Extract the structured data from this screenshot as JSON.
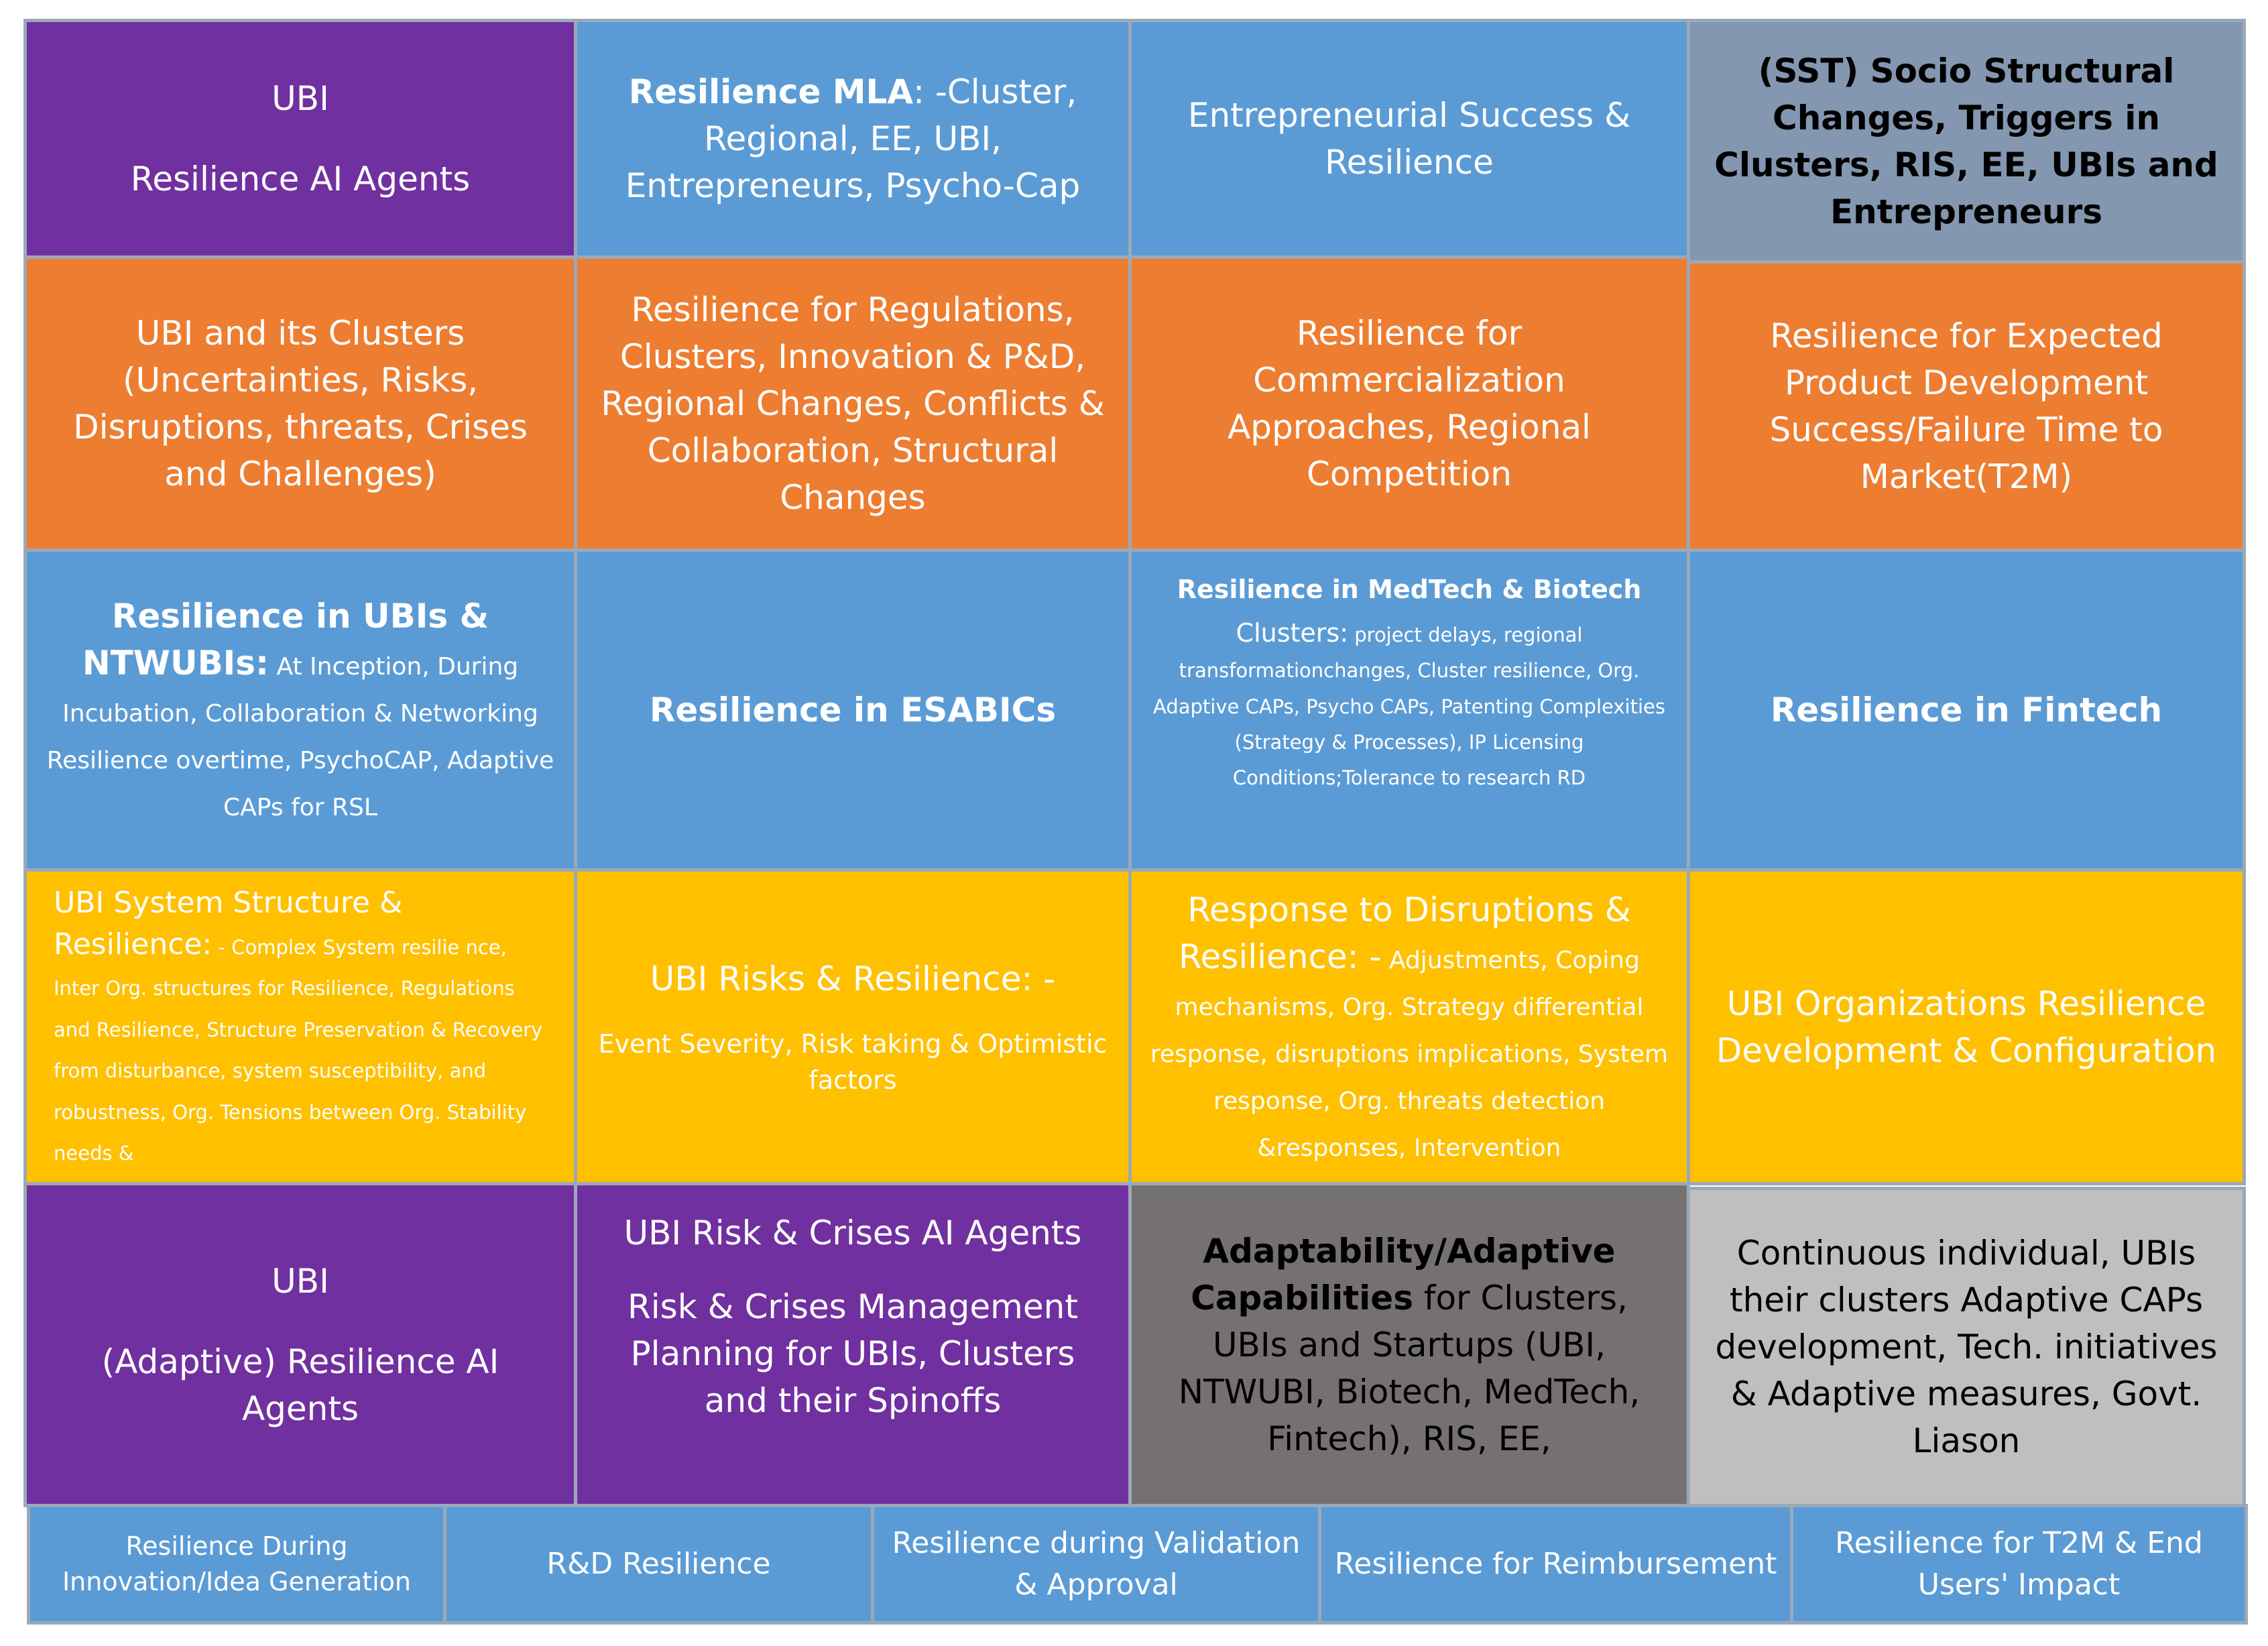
{
  "row1": {
    "c1": {
      "line1": "UBI",
      "line2": "Resilience AI  Agents"
    },
    "c2": {
      "bold": "Resilience MLA",
      "rest": ": -Cluster, Regional, EE, UBI, Entrepreneurs, Psycho-Cap"
    },
    "c3": {
      "text": "Entrepreneurial Success & Resilience"
    },
    "c4": {
      "text": "(SST) Socio Structural Changes, Triggers in Clusters, RIS, EE, UBIs and Entrepreneurs"
    }
  },
  "row2": {
    "c1": {
      "text": "UBI and its Clusters (Uncertainties, Risks, Disruptions, threats, Crises and Challenges)"
    },
    "c2": {
      "text": "Resilience for Regulations, Clusters, Innovation & P&D, Regional Changes, Conflicts & Collaboration, Structural Changes"
    },
    "c3": {
      "text": "Resilience for Commercialization Approaches, Regional Competition"
    },
    "c4": {
      "text": "Resilience for Expected Product Development Success/Failure Time to Market(T2M)"
    }
  },
  "row3": {
    "c1": {
      "bold": "Resilience in UBIs & NTWUBIs:",
      "rest": "  At Inception, During Incubation, Collaboration & Networking  Resilience overtime, PsychoCAP,  Adaptive CAPs for RSL"
    },
    "c2": {
      "text": "Resilience in ESABICs"
    },
    "c3": {
      "bold": "Resilience in MedTech & Biotech",
      "bold2": "Clusters:",
      "rest": "  project delays, regional transformationchanges, Cluster resilience, Org. Adaptive CAPs, Psycho CAPs, Patenting Complexities (Strategy & Processes), IP Licensing Conditions;Tolerance to research RD"
    },
    "c4": {
      "text": "Resilience in Fintech"
    }
  },
  "row4": {
    "c1": {
      "lead": "UBI System Structure & Resilience:",
      "rest": " - Complex System resilie nce, Inter Org. structures for Resilience, Regulations and Resilience, Structure Preservation & Recovery from disturbance, system susceptibility, and robustness, Org. Tensions between Org. Stability needs &"
    },
    "c2": {
      "title": "UBI Risks & Resilience: -",
      "sub": "Event  Severity, Risk taking & Optimistic factors"
    },
    "c3": {
      "lead": "Response to Disruptions & Resilience: -",
      "rest": "  Adjustments, Coping mechanisms, Org. Strategy differential response, disruptions implications, System response, Org. threats detection &responses, Intervention"
    },
    "c4": {
      "text": "UBI Organizations Resilience Development & Configuration"
    }
  },
  "row5": {
    "c1": {
      "line1": "UBI",
      "line2": "(Adaptive) Resilience AI Agents"
    },
    "c2": {
      "title": "UBI Risk & Crises AI Agents",
      "sub": "Risk & Crises Management Planning for UBIs, Clusters and their Spinoffs"
    },
    "c3": {
      "bold": "Adaptability/Adaptive Capabilities",
      "rest": " for Clusters, UBIs and Startups (UBI, NTWUBI, Biotech, MedTech, Fintech), RIS, EE,"
    },
    "c4": {
      "text": "Continuous individual, UBIs their clusters Adaptive CAPs development, Tech. initiatives & Adaptive measures, Govt. Liason"
    }
  },
  "row6": [
    {
      "text": "Resilience During Innovation/Idea Generation"
    },
    {
      "text": "R&D Resilience"
    },
    {
      "text": "Resilience during Validation & Approval"
    },
    {
      "text": "Resilience for Reimbursement"
    },
    {
      "text": "Resilience for T2M & End Users' Impact"
    }
  ],
  "colors": {
    "purple": "#7030a0",
    "blue": "#5b9bd5",
    "slate": "#8497b0",
    "orange": "#ed7d31",
    "yellow": "#ffc000",
    "dark_gray": "#767171",
    "light_gray": "#bfbfbf"
  }
}
